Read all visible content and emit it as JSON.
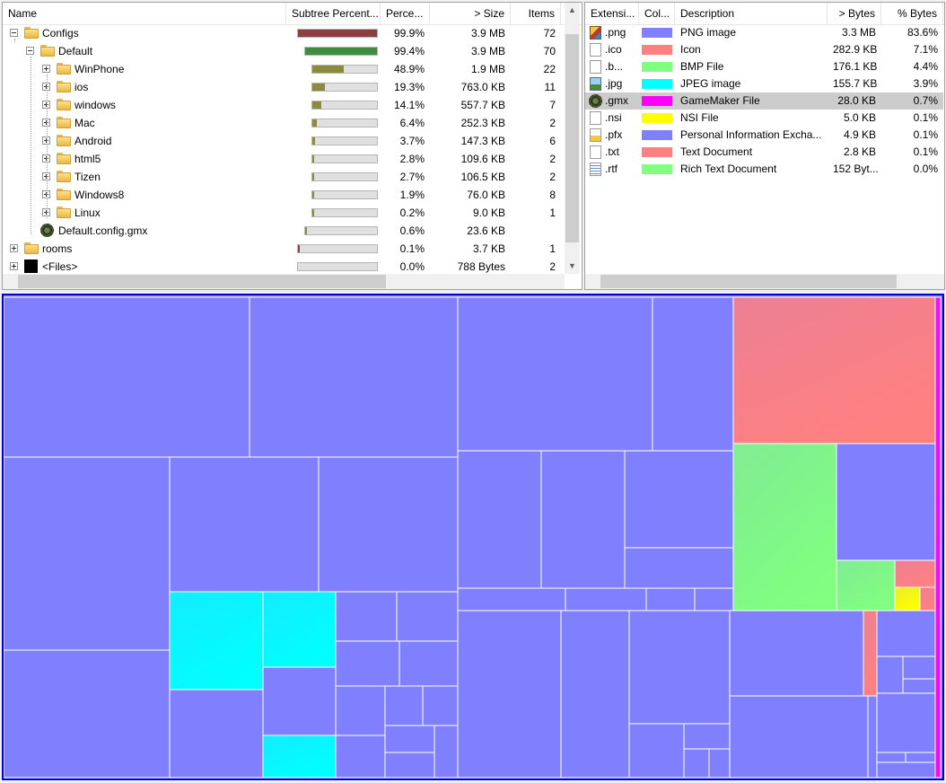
{
  "tree": {
    "columns": [
      {
        "label": "Name"
      },
      {
        "label": "Subtree Percent..."
      },
      {
        "label": "Perce..."
      },
      {
        "label": "> Size"
      },
      {
        "label": "Items"
      }
    ],
    "rows": [
      {
        "name": "Configs",
        "depth": 0,
        "icon": "folder-icon",
        "expander": "minus",
        "bar": 0.999,
        "bar_color": "#8b3f3f",
        "percent": "99.9%",
        "size": "3.9 MB",
        "items": "72"
      },
      {
        "name": "Default",
        "depth": 1,
        "icon": "folder-icon",
        "expander": "minus",
        "bar": 0.994,
        "bar_color": "#3f8b3f",
        "percent": "99.4%",
        "size": "3.9 MB",
        "items": "70"
      },
      {
        "name": "WinPhone",
        "depth": 2,
        "icon": "folder-icon",
        "expander": "plus",
        "bar": 0.489,
        "bar_color": "#8b8b3f",
        "percent": "48.9%",
        "size": "1.9 MB",
        "items": "22"
      },
      {
        "name": "ios",
        "depth": 2,
        "icon": "folder-icon",
        "expander": "plus",
        "bar": 0.193,
        "bar_color": "#8b8b3f",
        "percent": "19.3%",
        "size": "763.0 KB",
        "items": "11"
      },
      {
        "name": "windows",
        "depth": 2,
        "icon": "folder-icon",
        "expander": "plus",
        "bar": 0.141,
        "bar_color": "#8b8b3f",
        "percent": "14.1%",
        "size": "557.7 KB",
        "items": "7"
      },
      {
        "name": "Mac",
        "depth": 2,
        "icon": "folder-icon",
        "expander": "plus",
        "bar": 0.064,
        "bar_color": "#8b8b3f",
        "percent": "6.4%",
        "size": "252.3 KB",
        "items": "2"
      },
      {
        "name": "Android",
        "depth": 2,
        "icon": "folder-icon",
        "expander": "plus",
        "bar": 0.037,
        "bar_color": "#8b8b3f",
        "percent": "3.7%",
        "size": "147.3 KB",
        "items": "6"
      },
      {
        "name": "html5",
        "depth": 2,
        "icon": "folder-icon",
        "expander": "plus",
        "bar": 0.028,
        "bar_color": "#8b8b3f",
        "percent": "2.8%",
        "size": "109.6 KB",
        "items": "2"
      },
      {
        "name": "Tizen",
        "depth": 2,
        "icon": "folder-icon",
        "expander": "plus",
        "bar": 0.027,
        "bar_color": "#8b8b3f",
        "percent": "2.7%",
        "size": "106.5 KB",
        "items": "2"
      },
      {
        "name": "Windows8",
        "depth": 2,
        "icon": "folder-icon",
        "expander": "plus",
        "bar": 0.019,
        "bar_color": "#8b8b3f",
        "percent": "1.9%",
        "size": "76.0 KB",
        "items": "8"
      },
      {
        "name": "Linux",
        "depth": 2,
        "icon": "folder-icon",
        "expander": "plus",
        "bar": 0.002,
        "bar_color": "#8b8b3f",
        "percent": "0.2%",
        "size": "9.0 KB",
        "items": "1"
      },
      {
        "name": "Default.config.gmx",
        "depth": 1,
        "icon": "gamemaker-file-icon",
        "expander": "none",
        "bar": 0.006,
        "bar_color": "#8b8b3f",
        "percent": "0.6%",
        "size": "23.6 KB",
        "items": ""
      },
      {
        "name": "rooms",
        "depth": 0,
        "icon": "folder-icon",
        "expander": "plus",
        "bar": 0.001,
        "bar_color": "#8b3f3f",
        "percent": "0.1%",
        "size": "3.7 KB",
        "items": "1"
      },
      {
        "name": "<Files>",
        "depth": 0,
        "icon": "files-icon",
        "expander": "plus",
        "bar": 0.0,
        "bar_color": "#8b3f3f",
        "percent": "0.0%",
        "size": "788 Bytes",
        "items": "2"
      }
    ]
  },
  "extensions": {
    "columns": [
      {
        "label": "Extensi..."
      },
      {
        "label": "Col..."
      },
      {
        "label": "Description"
      },
      {
        "label": "> Bytes"
      },
      {
        "label": "% Bytes"
      }
    ],
    "rows": [
      {
        "ext": ".png",
        "icon": "png-file-icon",
        "color": "#8080ff",
        "description": "PNG image",
        "bytes": "3.3 MB",
        "percent": "83.6%",
        "selected": false
      },
      {
        "ext": ".ico",
        "icon": "document-icon",
        "color": "#ff8080",
        "description": "Icon",
        "bytes": "282.9 KB",
        "percent": "7.1%",
        "selected": false
      },
      {
        "ext": ".b...",
        "icon": "document-icon",
        "color": "#80ff80",
        "description": "BMP File",
        "bytes": "176.1 KB",
        "percent": "4.4%",
        "selected": false
      },
      {
        "ext": ".jpg",
        "icon": "jpeg-file-icon",
        "color": "#00ffff",
        "description": "JPEG image",
        "bytes": "155.7 KB",
        "percent": "3.9%",
        "selected": false
      },
      {
        "ext": ".gmx",
        "icon": "gamemaker-file-icon",
        "color": "#ff00ff",
        "description": "GameMaker File",
        "bytes": "28.0 KB",
        "percent": "0.7%",
        "selected": true
      },
      {
        "ext": ".nsi",
        "icon": "document-icon",
        "color": "#ffff00",
        "description": "NSI File",
        "bytes": "5.0 KB",
        "percent": "0.1%",
        "selected": false
      },
      {
        "ext": ".pfx",
        "icon": "certificate-icon",
        "color": "#8080ff",
        "description": "Personal Information Excha...",
        "bytes": "4.9 KB",
        "percent": "0.1%",
        "selected": false
      },
      {
        "ext": ".txt",
        "icon": "document-icon",
        "color": "#ff8080",
        "description": "Text Document",
        "bytes": "2.8 KB",
        "percent": "0.1%",
        "selected": false
      },
      {
        "ext": ".rtf",
        "icon": "rich-text-icon",
        "color": "#80ff80",
        "description": "Rich Text Document",
        "bytes": "152 Byt...",
        "percent": "0.0%",
        "selected": false
      }
    ]
  },
  "treemap": {
    "colors": {
      "png": "#8080ff",
      "ico": "#ff8080",
      "bmp": "#80ff80",
      "jpg": "#00ffff",
      "nsi": "#ffff00",
      "gmx": "#ff00ff"
    },
    "border_color": "#0000d0"
  }
}
